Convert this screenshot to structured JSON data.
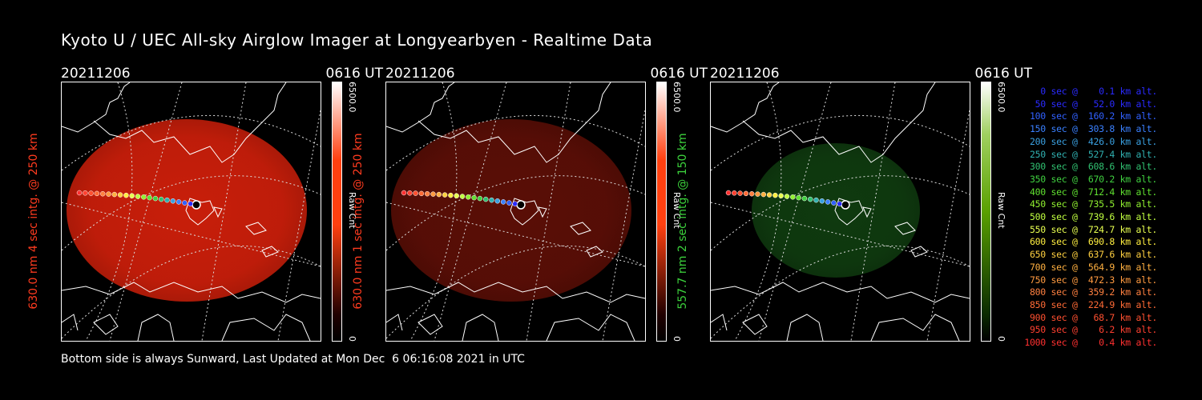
{
  "header": {
    "title": "Kyoto U / UEC All-sky Airglow Imager at Longyearbyen - Realtime Data"
  },
  "panels": [
    {
      "date": "20211206",
      "time": "0616 UT",
      "ylabel": "630.0 nm 4 sec intg. @ 250 km",
      "label_color": "#ff3b1f",
      "cbar_max": "6500.0",
      "cbar_min": "0",
      "cbar_unit": "Raw Cnt",
      "cbar_color": "#ff4010",
      "glow_color": "#c81e0a",
      "glow_opacity": 0.95
    },
    {
      "date": "20211206",
      "time": "0616 UT",
      "ylabel": "630.0 nm 1 sec intg. @ 250 km",
      "label_color": "#ff3b1f",
      "cbar_max": "6500.0",
      "cbar_min": "0",
      "cbar_unit": "Raw Cnt",
      "cbar_color": "#ff4010",
      "glow_color": "#5a0e06",
      "glow_opacity": 0.95
    },
    {
      "date": "20211206",
      "time": "0616 UT",
      "ylabel": "557.7 nm 2 sec intg. @ 150 km",
      "label_color": "#3cd23c",
      "cbar_max": "6500.0",
      "cbar_min": "0",
      "cbar_unit": "Raw Cnt",
      "cbar_color": "#5aa000",
      "glow_color": "#0f3a0f",
      "glow_opacity": 0.95
    }
  ],
  "legend": [
    {
      "text": "   0 sec @    0.1 km alt.",
      "color": "#2a2aff"
    },
    {
      "text": "  50 sec @   52.0 km alt.",
      "color": "#2a2aff"
    },
    {
      "text": " 100 sec @  160.2 km alt.",
      "color": "#3060ff"
    },
    {
      "text": " 150 sec @  303.8 km alt.",
      "color": "#3a80ff"
    },
    {
      "text": " 200 sec @  426.0 km alt.",
      "color": "#3aa0e0"
    },
    {
      "text": " 250 sec @  527.4 km alt.",
      "color": "#30b0b0"
    },
    {
      "text": " 300 sec @  608.6 km alt.",
      "color": "#30c070"
    },
    {
      "text": " 350 sec @  670.2 km alt.",
      "color": "#40d040"
    },
    {
      "text": " 400 sec @  712.4 km alt.",
      "color": "#60e030"
    },
    {
      "text": " 450 sec @  735.5 km alt.",
      "color": "#90f030"
    },
    {
      "text": " 500 sec @  739.6 km alt.",
      "color": "#c0ff40"
    },
    {
      "text": " 550 sec @  724.7 km alt.",
      "color": "#e8ff50"
    },
    {
      "text": " 600 sec @  690.8 km alt.",
      "color": "#ffee40"
    },
    {
      "text": " 650 sec @  637.6 km alt.",
      "color": "#ffd040"
    },
    {
      "text": " 700 sec @  564.9 km alt.",
      "color": "#ffb040"
    },
    {
      "text": " 750 sec @  472.3 km alt.",
      "color": "#ff9a40"
    },
    {
      "text": " 800 sec @  359.2 km alt.",
      "color": "#ff8040"
    },
    {
      "text": " 850 sec @  224.9 km alt.",
      "color": "#ff6a35"
    },
    {
      "text": " 900 sec @   68.7 km alt.",
      "color": "#ff5030"
    },
    {
      "text": " 950 sec @    6.2 km alt.",
      "color": "#ff4030"
    },
    {
      "text": "1000 sec @    0.4 km alt.",
      "color": "#ff3030"
    }
  ],
  "footer": {
    "text": "Bottom side is always Sunward, Last Updated at Mon Dec  6 06:16:08 2021 in UTC"
  }
}
